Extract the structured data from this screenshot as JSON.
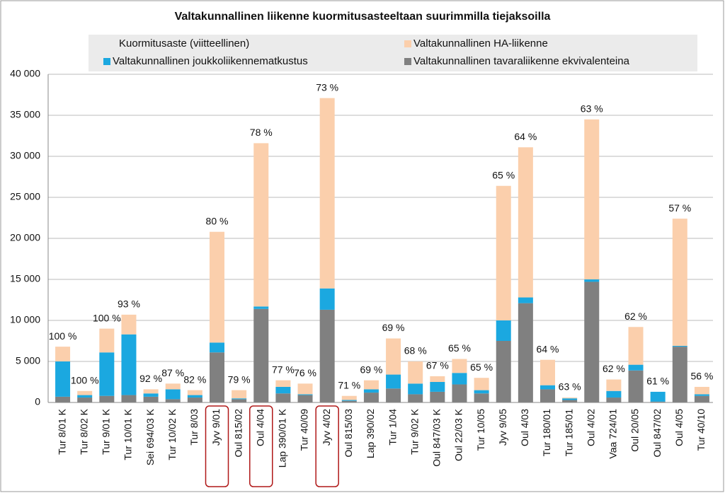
{
  "chart_data": {
    "type": "stacked_bar",
    "title": "Valtakunnallinen liikenne kuormitusasteeltaan suurimmilla tiejaksoilla",
    "categories": [
      "Tur 8/01 K",
      "Tur 8/02 K",
      "Tur 9/01 K",
      "Tur 10/01 K",
      "Sei 694/03 K",
      "Tur 10/02 K",
      "Tur 8/03",
      "Jyv 9/01",
      "Oul 815/02",
      "Oul 4/04",
      "Lap 390/01 K",
      "Tur 40/09",
      "Jyv 4/02",
      "Oul 815/03",
      "Lap 390/02",
      "Tur 1/04",
      "Tur 9/02 K",
      "Oul 847/03 K",
      "Oul 22/03 K",
      "Tur 10/05",
      "Jyv 9/05",
      "Oul 4/03",
      "Tur 180/01",
      "Tur 185/01",
      "Oul 4/02",
      "Vaa 724/01",
      "Oul 20/05",
      "Oul 847/02",
      "Oul 4/05",
      "Tur 40/10"
    ],
    "series": [
      {
        "name": "Valtakunnallinen tavaraliikenne ekvivalenteina",
        "color": "#808080",
        "values": [
          700,
          600,
          800,
          900,
          700,
          400,
          600,
          6100,
          400,
          11400,
          1100,
          900,
          11300,
          200,
          1200,
          1700,
          1000,
          1300,
          2200,
          1100,
          7500,
          12100,
          1600,
          300,
          14700,
          600,
          3900,
          100,
          6800,
          800
        ]
      },
      {
        "name": "Valtakunnallinen joukkoliikennematkustus",
        "color": "#1ba8e0",
        "values": [
          4300,
          300,
          5300,
          7400,
          400,
          1200,
          300,
          1200,
          100,
          300,
          800,
          100,
          2600,
          100,
          400,
          1700,
          1300,
          1200,
          1400,
          400,
          2500,
          700,
          500,
          200,
          300,
          800,
          700,
          1200,
          100,
          200
        ]
      },
      {
        "name": "Valtakunnallinen HA-liikenne",
        "color": "#fbcfac",
        "values": [
          1800,
          500,
          2900,
          2400,
          500,
          700,
          600,
          13500,
          1000,
          19900,
          800,
          1300,
          23200,
          500,
          1100,
          4400,
          2700,
          700,
          1700,
          1500,
          16400,
          18300,
          3100,
          100,
          19500,
          1400,
          4600,
          0,
          15500,
          900
        ]
      },
      {
        "name": "Kuormitusaste (viitteellinen)",
        "values": [
          100,
          100,
          100,
          93,
          92,
          87,
          82,
          80,
          79,
          78,
          77,
          76,
          73,
          71,
          69,
          69,
          68,
          67,
          65,
          65,
          65,
          64,
          64,
          63,
          63,
          62,
          62,
          61,
          57,
          56
        ],
        "value_labels": [
          "100 %",
          "100 %",
          "100 %",
          "93 %",
          "92 %",
          "87 %",
          "82 %",
          "80 %",
          "79 %",
          "78 %",
          "77 %",
          "76 %",
          "73 %",
          "71 %",
          "69 %",
          "69 %",
          "68 %",
          "67 %",
          "65 %",
          "65 %",
          "65 %",
          "64 %",
          "64 %",
          "63 %",
          "63 %",
          "62 %",
          "62 %",
          "61 %",
          "57 %",
          "56 %"
        ]
      }
    ],
    "ylim": [
      0,
      40000
    ],
    "yticks": [
      0,
      {
        "value": 5000,
        "label": "5 000"
      },
      {
        "value": 10000,
        "label": "10 000"
      },
      {
        "value": 15000,
        "label": "15 000"
      },
      {
        "value": 20000,
        "label": "20 000"
      },
      {
        "value": 25000,
        "label": "25 000"
      },
      {
        "value": 30000,
        "label": "30 000"
      },
      {
        "value": 35000,
        "label": "35 000"
      },
      {
        "value": 40000,
        "label": "40 000"
      }
    ],
    "grid": true,
    "highlight": [
      7,
      9,
      12
    ]
  }
}
